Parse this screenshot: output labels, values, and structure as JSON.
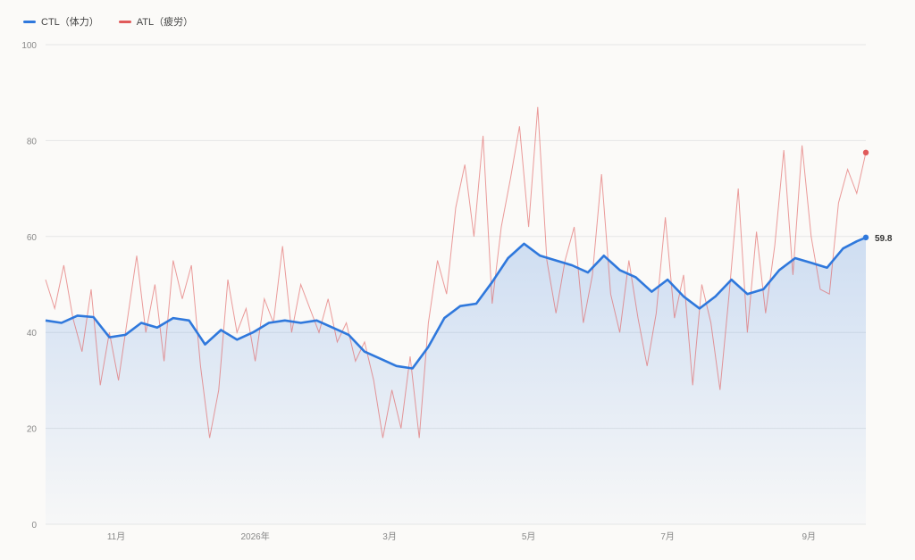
{
  "legend": {
    "ctl_label": "CTL（体力）",
    "atl_label": "ATL（疲労）"
  },
  "colors": {
    "ctl": "#2f78dc",
    "atl": "#e05a5a",
    "grid": "#e6e6e6"
  },
  "chart_data": {
    "type": "line",
    "ylim": [
      0,
      100
    ],
    "yticks": [
      0,
      20,
      40,
      60,
      80,
      100
    ],
    "x_range": [
      "2025-10-01",
      "2026-09-26"
    ],
    "xticks": [
      {
        "date": "2025-11-01",
        "label": "11月"
      },
      {
        "date": "2026-01-01",
        "label": "2026年"
      },
      {
        "date": "2026-03-01",
        "label": "3月"
      },
      {
        "date": "2026-05-01",
        "label": "5月"
      },
      {
        "date": "2026-07-01",
        "label": "7月"
      },
      {
        "date": "2026-09-01",
        "label": "9月"
      }
    ],
    "series": [
      {
        "name": "CTL（体力）",
        "points": [
          [
            "2025-10-01",
            42.5
          ],
          [
            "2025-10-08",
            42.0
          ],
          [
            "2025-10-15",
            43.5
          ],
          [
            "2025-10-22",
            43.2
          ],
          [
            "2025-10-29",
            39.0
          ],
          [
            "2025-11-05",
            39.5
          ],
          [
            "2025-11-12",
            42.0
          ],
          [
            "2025-11-19",
            41.0
          ],
          [
            "2025-11-26",
            43.0
          ],
          [
            "2025-12-03",
            42.5
          ],
          [
            "2025-12-10",
            37.5
          ],
          [
            "2025-12-17",
            40.5
          ],
          [
            "2025-12-24",
            38.5
          ],
          [
            "2025-12-31",
            40.0
          ],
          [
            "2026-01-07",
            42.0
          ],
          [
            "2026-01-14",
            42.5
          ],
          [
            "2026-01-21",
            42.0
          ],
          [
            "2026-01-28",
            42.5
          ],
          [
            "2026-02-04",
            41.0
          ],
          [
            "2026-02-11",
            39.5
          ],
          [
            "2026-02-18",
            36.0
          ],
          [
            "2026-02-25",
            34.5
          ],
          [
            "2026-03-04",
            33.0
          ],
          [
            "2026-03-11",
            32.5
          ],
          [
            "2026-03-18",
            37.0
          ],
          [
            "2026-03-25",
            43.0
          ],
          [
            "2026-04-01",
            45.5
          ],
          [
            "2026-04-08",
            46.0
          ],
          [
            "2026-04-15",
            50.5
          ],
          [
            "2026-04-22",
            55.5
          ],
          [
            "2026-04-29",
            58.5
          ],
          [
            "2026-05-06",
            56.0
          ],
          [
            "2026-05-13",
            55.0
          ],
          [
            "2026-05-20",
            54.0
          ],
          [
            "2026-05-27",
            52.5
          ],
          [
            "2026-06-03",
            56.0
          ],
          [
            "2026-06-10",
            53.0
          ],
          [
            "2026-06-17",
            51.5
          ],
          [
            "2026-06-24",
            48.5
          ],
          [
            "2026-07-01",
            51.0
          ],
          [
            "2026-07-08",
            47.5
          ],
          [
            "2026-07-15",
            45.0
          ],
          [
            "2026-07-22",
            47.5
          ],
          [
            "2026-07-29",
            51.0
          ],
          [
            "2026-08-05",
            48.0
          ],
          [
            "2026-08-12",
            49.0
          ],
          [
            "2026-08-19",
            53.0
          ],
          [
            "2026-08-26",
            55.5
          ],
          [
            "2026-09-02",
            54.5
          ],
          [
            "2026-09-09",
            53.5
          ],
          [
            "2026-09-16",
            57.5
          ],
          [
            "2026-09-22",
            59.0
          ],
          [
            "2026-09-26",
            59.8
          ]
        ]
      },
      {
        "name": "ATL（疲労）",
        "points": [
          [
            "2025-10-01",
            51
          ],
          [
            "2025-10-05",
            45
          ],
          [
            "2025-10-09",
            54
          ],
          [
            "2025-10-13",
            43
          ],
          [
            "2025-10-17",
            36
          ],
          [
            "2025-10-21",
            49
          ],
          [
            "2025-10-25",
            29
          ],
          [
            "2025-10-29",
            40
          ],
          [
            "2025-11-02",
            30
          ],
          [
            "2025-11-06",
            43
          ],
          [
            "2025-11-10",
            56
          ],
          [
            "2025-11-14",
            40
          ],
          [
            "2025-11-18",
            50
          ],
          [
            "2025-11-22",
            34
          ],
          [
            "2025-11-26",
            55
          ],
          [
            "2025-11-30",
            47
          ],
          [
            "2025-12-04",
            54
          ],
          [
            "2025-12-08",
            33
          ],
          [
            "2025-12-12",
            18
          ],
          [
            "2025-12-16",
            28
          ],
          [
            "2025-12-20",
            51
          ],
          [
            "2025-12-24",
            40
          ],
          [
            "2025-12-28",
            45
          ],
          [
            "2026-01-01",
            34
          ],
          [
            "2026-01-05",
            47
          ],
          [
            "2026-01-09",
            42
          ],
          [
            "2026-01-13",
            58
          ],
          [
            "2026-01-17",
            40
          ],
          [
            "2026-01-21",
            50
          ],
          [
            "2026-01-25",
            45
          ],
          [
            "2026-01-29",
            40
          ],
          [
            "2026-02-02",
            47
          ],
          [
            "2026-02-06",
            38
          ],
          [
            "2026-02-10",
            42
          ],
          [
            "2026-02-14",
            34
          ],
          [
            "2026-02-18",
            38
          ],
          [
            "2026-02-22",
            30
          ],
          [
            "2026-02-26",
            18
          ],
          [
            "2026-03-02",
            28
          ],
          [
            "2026-03-06",
            20
          ],
          [
            "2026-03-10",
            35
          ],
          [
            "2026-03-14",
            18
          ],
          [
            "2026-03-18",
            42
          ],
          [
            "2026-03-22",
            55
          ],
          [
            "2026-03-26",
            48
          ],
          [
            "2026-03-30",
            66
          ],
          [
            "2026-04-03",
            75
          ],
          [
            "2026-04-07",
            60
          ],
          [
            "2026-04-11",
            81
          ],
          [
            "2026-04-15",
            46
          ],
          [
            "2026-04-19",
            62
          ],
          [
            "2026-04-23",
            72
          ],
          [
            "2026-04-27",
            83
          ],
          [
            "2026-05-01",
            62
          ],
          [
            "2026-05-05",
            87
          ],
          [
            "2026-05-09",
            55
          ],
          [
            "2026-05-13",
            44
          ],
          [
            "2026-05-17",
            55
          ],
          [
            "2026-05-21",
            62
          ],
          [
            "2026-05-25",
            42
          ],
          [
            "2026-05-29",
            52
          ],
          [
            "2026-06-02",
            73
          ],
          [
            "2026-06-06",
            48
          ],
          [
            "2026-06-10",
            40
          ],
          [
            "2026-06-14",
            55
          ],
          [
            "2026-06-18",
            43
          ],
          [
            "2026-06-22",
            33
          ],
          [
            "2026-06-26",
            44
          ],
          [
            "2026-06-30",
            64
          ],
          [
            "2026-07-04",
            43
          ],
          [
            "2026-07-08",
            52
          ],
          [
            "2026-07-12",
            29
          ],
          [
            "2026-07-16",
            50
          ],
          [
            "2026-07-20",
            42
          ],
          [
            "2026-07-24",
            28
          ],
          [
            "2026-07-28",
            48
          ],
          [
            "2026-08-01",
            70
          ],
          [
            "2026-08-05",
            40
          ],
          [
            "2026-08-09",
            61
          ],
          [
            "2026-08-13",
            44
          ],
          [
            "2026-08-17",
            58
          ],
          [
            "2026-08-21",
            78
          ],
          [
            "2026-08-25",
            52
          ],
          [
            "2026-08-29",
            79
          ],
          [
            "2026-09-02",
            60
          ],
          [
            "2026-09-06",
            49
          ],
          [
            "2026-09-10",
            48
          ],
          [
            "2026-09-14",
            67
          ],
          [
            "2026-09-18",
            74
          ],
          [
            "2026-09-22",
            69
          ],
          [
            "2026-09-26",
            77.5
          ]
        ]
      }
    ],
    "last_value_label": "59.8"
  }
}
